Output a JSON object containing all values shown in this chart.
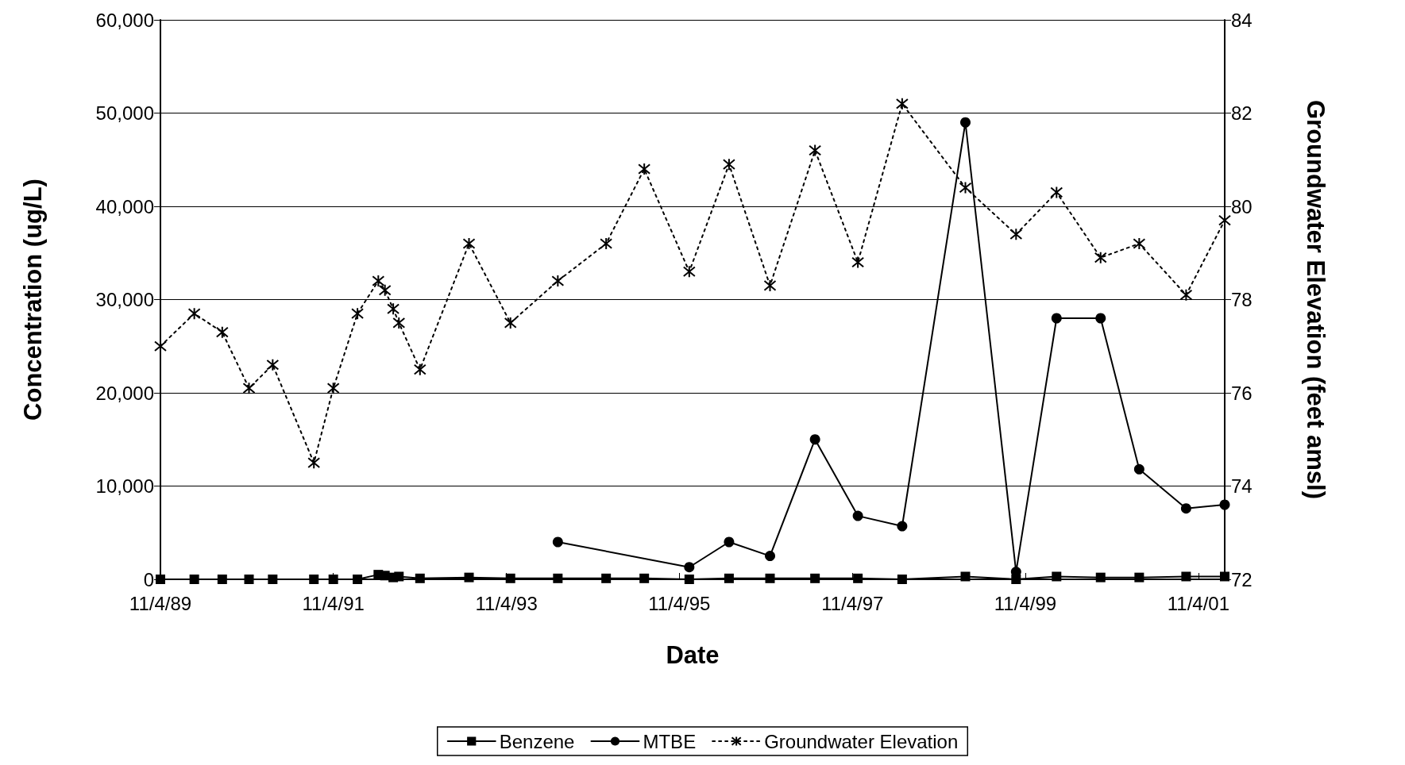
{
  "chart_data": {
    "type": "line",
    "xlabel": "Date",
    "ylabel": "Concentration (ug/L)",
    "y2label": "Groundwater Elevation (feet amsl)",
    "x": [
      "1989-11-04",
      "1990-03-27",
      "1990-07-23",
      "1990-11-13",
      "1991-02-21",
      "1991-08-14",
      "1991-11-04",
      "1992-02-14",
      "1992-05-12",
      "1992-06-09",
      "1992-07-14",
      "1992-08-07",
      "1992-11-04",
      "1993-05-30",
      "1993-11-21",
      "1994-06-09",
      "1994-12-30",
      "1995-06-09",
      "1995-12-16",
      "1996-06-01",
      "1996-11-21",
      "1997-05-30",
      "1997-11-27",
      "1998-06-02",
      "1999-02-24",
      "1999-09-26",
      "2000-03-15",
      "2000-09-17",
      "2001-02-27",
      "2001-09-13",
      "2002-02-23"
    ],
    "series": [
      {
        "name": "Benzene",
        "color": "#000000",
        "marker": "square",
        "line_style": "solid",
        "values": [
          0,
          0,
          0,
          0,
          0,
          0,
          0,
          0,
          500,
          400,
          200,
          300,
          100,
          200,
          100,
          100,
          100,
          100,
          0,
          100,
          100,
          100,
          100,
          0,
          300,
          0,
          300,
          200,
          200,
          300,
          300
        ]
      },
      {
        "name": "MTBE",
        "color": "#000000",
        "marker": "circle",
        "line_style": "solid",
        "x": [
          "1994-06-09",
          "1995-12-16",
          "1996-06-01",
          "1996-11-21",
          "1997-05-30",
          "1997-11-27",
          "1998-06-02",
          "1999-02-24",
          "1999-09-26",
          "2000-03-15",
          "2000-09-17",
          "2001-02-27",
          "2001-09-13",
          "2002-02-23"
        ],
        "values": [
          4000,
          1300,
          4000,
          2500,
          15000,
          6800,
          5700,
          49000,
          800,
          28000,
          28000,
          11800,
          7600,
          8000
        ]
      },
      {
        "name": "Groundwater Elevation",
        "color": "#000000",
        "marker": "cross",
        "line_style": "dotted",
        "axis": "y2",
        "values": [
          77.0,
          77.7,
          77.3,
          76.1,
          76.6,
          74.5,
          76.1,
          77.7,
          78.4,
          78.2,
          77.8,
          77.5,
          76.5,
          79.2,
          77.5,
          78.4,
          79.2,
          80.8,
          78.6,
          80.9,
          78.3,
          81.2,
          78.8,
          82.2,
          80.4,
          79.4,
          80.3,
          78.9,
          79.2,
          78.1,
          79.7
        ]
      }
    ],
    "xlim": [
      "1989-11-04",
      "2002-02-23"
    ],
    "xticks": [
      {
        "value": "1989-11-04",
        "label": "11/4/89"
      },
      {
        "value": "1991-11-04",
        "label": "11/4/91"
      },
      {
        "value": "1993-11-04",
        "label": "11/4/93"
      },
      {
        "value": "1995-11-04",
        "label": "11/4/95"
      },
      {
        "value": "1997-11-04",
        "label": "11/4/97"
      },
      {
        "value": "1999-11-04",
        "label": "11/4/99"
      },
      {
        "value": "2001-11-04",
        "label": "11/4/01"
      }
    ],
    "ylim": [
      0,
      60000
    ],
    "yticks": [
      0,
      {
        "value": 10000,
        "label": "10,000"
      },
      {
        "value": 20000,
        "label": "20,000"
      },
      {
        "value": 30000,
        "label": "30,000"
      },
      {
        "value": 40000,
        "label": "40,000"
      },
      {
        "value": 50000,
        "label": "50,000"
      },
      {
        "value": 60000,
        "label": "60,000"
      }
    ],
    "y2lim": [
      72,
      84
    ],
    "y2ticks": [
      72,
      74,
      76,
      78,
      80,
      82,
      84
    ],
    "grid": "y",
    "legend": "bottom"
  }
}
